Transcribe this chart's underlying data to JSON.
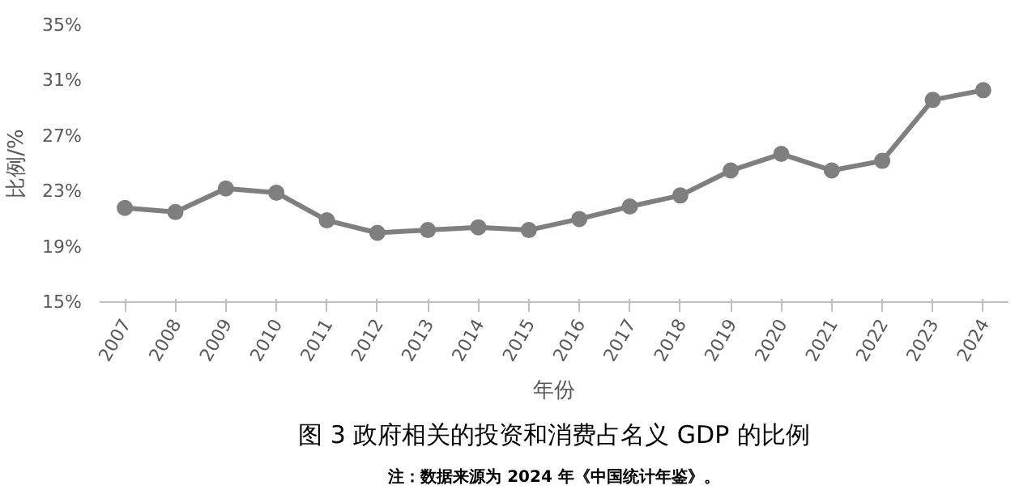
{
  "chart_data": {
    "type": "line",
    "title": "图 3 政府相关的投资和消费占名义 GDP 的比例",
    "xlabel": "年份",
    "ylabel": "比例/%",
    "annotations": [
      "注：数据来源为 2024 年《中国统计年鉴》。"
    ],
    "categories": [
      "2007",
      "2008",
      "2009",
      "2010",
      "2011",
      "2012",
      "2013",
      "2014",
      "2015",
      "2016",
      "2017",
      "2018",
      "2019",
      "2020",
      "2021",
      "2022",
      "2023",
      "2024"
    ],
    "series": [
      {
        "color": "#7f7f7f",
        "values": [
          21.8,
          21.5,
          23.2,
          22.9,
          20.9,
          20.0,
          20.2,
          20.4,
          20.2,
          21.0,
          21.9,
          22.7,
          24.5,
          25.7,
          24.5,
          25.2,
          29.6,
          30.3
        ]
      }
    ],
    "ylim": [
      15,
      35
    ],
    "yticks": [
      {
        "value": 15,
        "label": "15%"
      },
      {
        "value": 19,
        "label": "19%"
      },
      {
        "value": 23,
        "label": "23%"
      },
      {
        "value": 27,
        "label": "27%"
      },
      {
        "value": 31,
        "label": "31%"
      },
      {
        "value": 35,
        "label": "35%"
      }
    ],
    "grid": false,
    "marker": "circle",
    "line_style": "solid"
  }
}
